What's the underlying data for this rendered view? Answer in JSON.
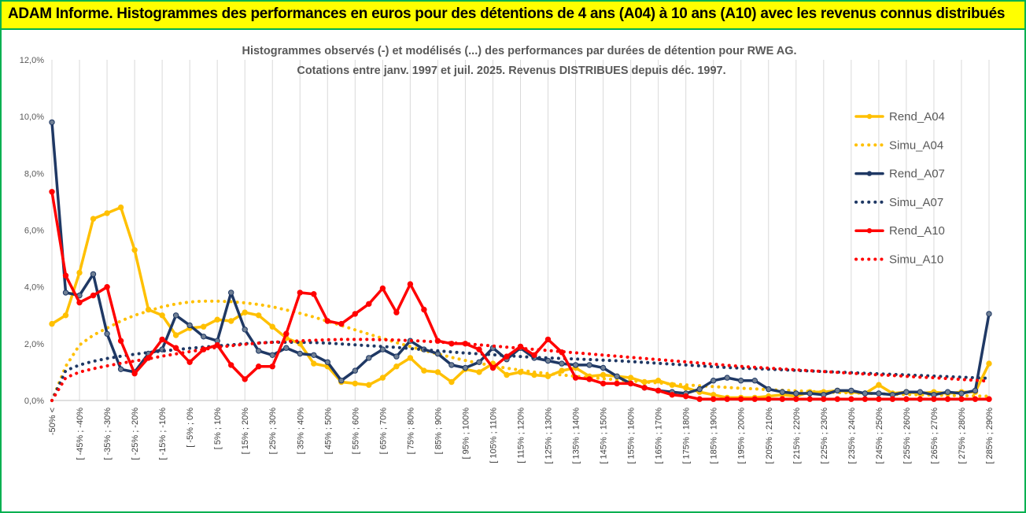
{
  "banner": {
    "title": "ADAM Informe. Histogrammes des performances en euros pour des détentions de 4 ans (A04) à 10 ans (A10) avec les revenus connus distribués"
  },
  "colors": {
    "A04": "#ffc000",
    "A07": "#1f3864",
    "A10": "#ff0000",
    "frame": "#00b050",
    "banner": "#ffff00"
  },
  "chart_data": {
    "type": "line",
    "title": [
      "Histogrammes observés (-) et modélisés (...) des performances par durées de détention pour RWE AG.",
      "Cotations entre janv. 1997 et juil. 2025. Revenus DISTRIBUES depuis déc. 1997."
    ],
    "ylim": [
      0,
      12
    ],
    "y_ticks": [
      "0,0%",
      "2,0%",
      "4,0%",
      "6,0%",
      "8,0%",
      "10,0%",
      "12,0%"
    ],
    "grid": "vertical",
    "legend_position": "right",
    "x_labels": [
      "-50% <",
      "[ -45% ; -40%",
      "[ -35% ; -30%",
      "[ -25% ; -20%",
      "[ -15% ; -10%",
      "[ -5% ; 0%",
      "[ 5% ; 10%",
      "[ 15% ; 20%",
      "[ 25% ; 30%",
      "[ 35% ; 40%",
      "[ 45% ; 50%",
      "[ 55% ; 60%",
      "[ 65% ; 70%",
      "[ 75% ; 80%",
      "[ 85% ; 90%",
      "[ 95% ; 100%",
      "[ 105% ; 110%",
      "[ 115% ; 120%",
      "[ 125% ; 130%",
      "[ 135% ; 140%",
      "[ 145% ; 150%",
      "[ 155% ; 160%",
      "[ 165% ; 170%",
      "[ 175% ; 180%",
      "[ 185% ; 190%",
      "[ 195% ; 200%",
      "[ 205% ; 210%",
      "[ 215% ; 220%",
      "[ 225% ; 230%",
      "[ 235% ; 240%",
      "[ 245% ; 250%",
      "[ 255% ; 260%",
      "[ 265% ; 270%",
      "[ 275% ; 280%",
      "[ 285% ; 290%"
    ],
    "series": [
      {
        "name": "Rend_A04",
        "style": "solid",
        "color": "#ffc000",
        "values": [
          2.7,
          3.0,
          4.5,
          6.4,
          6.6,
          6.8,
          5.3,
          3.2,
          3.0,
          2.3,
          2.55,
          2.6,
          2.85,
          2.8,
          3.1,
          3.0,
          2.6,
          2.2,
          2.0,
          1.3,
          1.2,
          0.65,
          0.6,
          0.55,
          0.8,
          1.2,
          1.5,
          1.05,
          1.0,
          0.65,
          1.1,
          1.0,
          1.3,
          0.9,
          1.0,
          0.9,
          0.85,
          1.05,
          1.15,
          0.85,
          0.9,
          0.85,
          0.8,
          0.65,
          0.7,
          0.55,
          0.45,
          0.3,
          0.2,
          0.1,
          0.1,
          0.1,
          0.15,
          0.2,
          0.15,
          0.3,
          0.3,
          0.35,
          0.3,
          0.25,
          0.55,
          0.25,
          0.3,
          0.25,
          0.3,
          0.25,
          0.3,
          0.3,
          1.3
        ]
      },
      {
        "name": "Simu_A04",
        "style": "dotted",
        "color": "#ffc000",
        "values": [
          0.0,
          1.2,
          1.95,
          2.3,
          2.55,
          2.8,
          3.0,
          3.15,
          3.3,
          3.4,
          3.47,
          3.5,
          3.5,
          3.48,
          3.44,
          3.38,
          3.3,
          3.19,
          3.07,
          2.94,
          2.79,
          2.64,
          2.49,
          2.34,
          2.19,
          2.04,
          1.9,
          1.76,
          1.64,
          1.52,
          1.41,
          1.31,
          1.22,
          1.14,
          1.07,
          1.0,
          0.95,
          0.9,
          0.85,
          0.81,
          0.77,
          0.73,
          0.69,
          0.65,
          0.62,
          0.58,
          0.55,
          0.52,
          0.49,
          0.46,
          0.43,
          0.41,
          0.38,
          0.36,
          0.34,
          0.32,
          0.3,
          0.28,
          0.27,
          0.25,
          0.24,
          0.22,
          0.21,
          0.2,
          0.19,
          0.18,
          0.17,
          0.16,
          0.15
        ]
      },
      {
        "name": "Rend_A07",
        "style": "solid",
        "color": "#1f3864",
        "values": [
          9.8,
          3.8,
          3.7,
          4.45,
          2.35,
          1.1,
          1.0,
          1.65,
          1.8,
          3.0,
          2.65,
          2.25,
          2.1,
          3.8,
          2.5,
          1.75,
          1.6,
          1.85,
          1.65,
          1.6,
          1.35,
          0.7,
          1.05,
          1.5,
          1.8,
          1.55,
          2.1,
          1.8,
          1.65,
          1.25,
          1.15,
          1.35,
          1.85,
          1.45,
          1.85,
          1.5,
          1.4,
          1.3,
          1.25,
          1.25,
          1.15,
          0.85,
          0.6,
          0.45,
          0.35,
          0.3,
          0.25,
          0.4,
          0.7,
          0.8,
          0.7,
          0.7,
          0.4,
          0.3,
          0.25,
          0.25,
          0.2,
          0.35,
          0.35,
          0.25,
          0.25,
          0.2,
          0.3,
          0.3,
          0.2,
          0.3,
          0.25,
          0.35,
          3.05
        ]
      },
      {
        "name": "Simu_A07",
        "style": "dotted",
        "color": "#1f3864",
        "values": [
          0.0,
          1.05,
          1.25,
          1.38,
          1.48,
          1.56,
          1.63,
          1.69,
          1.74,
          1.79,
          1.84,
          1.88,
          1.92,
          1.96,
          2.0,
          2.03,
          2.05,
          2.05,
          2.05,
          2.04,
          2.02,
          1.99,
          1.96,
          1.93,
          1.9,
          1.87,
          1.83,
          1.79,
          1.75,
          1.71,
          1.67,
          1.64,
          1.61,
          1.58,
          1.55,
          1.52,
          1.5,
          1.48,
          1.46,
          1.44,
          1.42,
          1.4,
          1.37,
          1.34,
          1.31,
          1.28,
          1.25,
          1.22,
          1.19,
          1.16,
          1.14,
          1.12,
          1.1,
          1.08,
          1.06,
          1.04,
          1.02,
          1.0,
          0.98,
          0.96,
          0.94,
          0.92,
          0.9,
          0.88,
          0.86,
          0.84,
          0.82,
          0.8,
          0.78
        ]
      },
      {
        "name": "Rend_A10",
        "style": "solid",
        "color": "#ff0000",
        "values": [
          7.35,
          4.4,
          3.45,
          3.7,
          4.0,
          2.1,
          0.95,
          1.5,
          2.15,
          1.85,
          1.35,
          1.8,
          1.95,
          1.25,
          0.75,
          1.2,
          1.2,
          2.35,
          3.8,
          3.75,
          2.8,
          2.7,
          3.05,
          3.4,
          3.95,
          3.1,
          4.1,
          3.2,
          2.1,
          2.0,
          2.0,
          1.8,
          1.15,
          1.55,
          1.9,
          1.6,
          2.15,
          1.7,
          0.8,
          0.75,
          0.6,
          0.6,
          0.6,
          0.45,
          0.35,
          0.2,
          0.15,
          0.05,
          0.05,
          0.05,
          0.05,
          0.05,
          0.05,
          0.05,
          0.05,
          0.05,
          0.05,
          0.05,
          0.05,
          0.05,
          0.05,
          0.05,
          0.05,
          0.05,
          0.05,
          0.05,
          0.05,
          0.05,
          0.05
        ]
      },
      {
        "name": "Simu_A10",
        "style": "dotted",
        "color": "#ff0000",
        "values": [
          0.0,
          0.8,
          1.0,
          1.12,
          1.22,
          1.31,
          1.39,
          1.47,
          1.56,
          1.64,
          1.72,
          1.8,
          1.87,
          1.93,
          1.98,
          2.02,
          2.05,
          2.08,
          2.1,
          2.12,
          2.14,
          2.15,
          2.15,
          2.15,
          2.14,
          2.13,
          2.11,
          2.09,
          2.06,
          2.03,
          2.0,
          1.96,
          1.92,
          1.88,
          1.84,
          1.8,
          1.76,
          1.72,
          1.68,
          1.64,
          1.6,
          1.56,
          1.52,
          1.48,
          1.44,
          1.4,
          1.36,
          1.32,
          1.28,
          1.24,
          1.2,
          1.17,
          1.14,
          1.11,
          1.08,
          1.05,
          1.02,
          0.99,
          0.96,
          0.93,
          0.9,
          0.88,
          0.85,
          0.82,
          0.8,
          0.77,
          0.74,
          0.71,
          0.68
        ]
      }
    ]
  }
}
